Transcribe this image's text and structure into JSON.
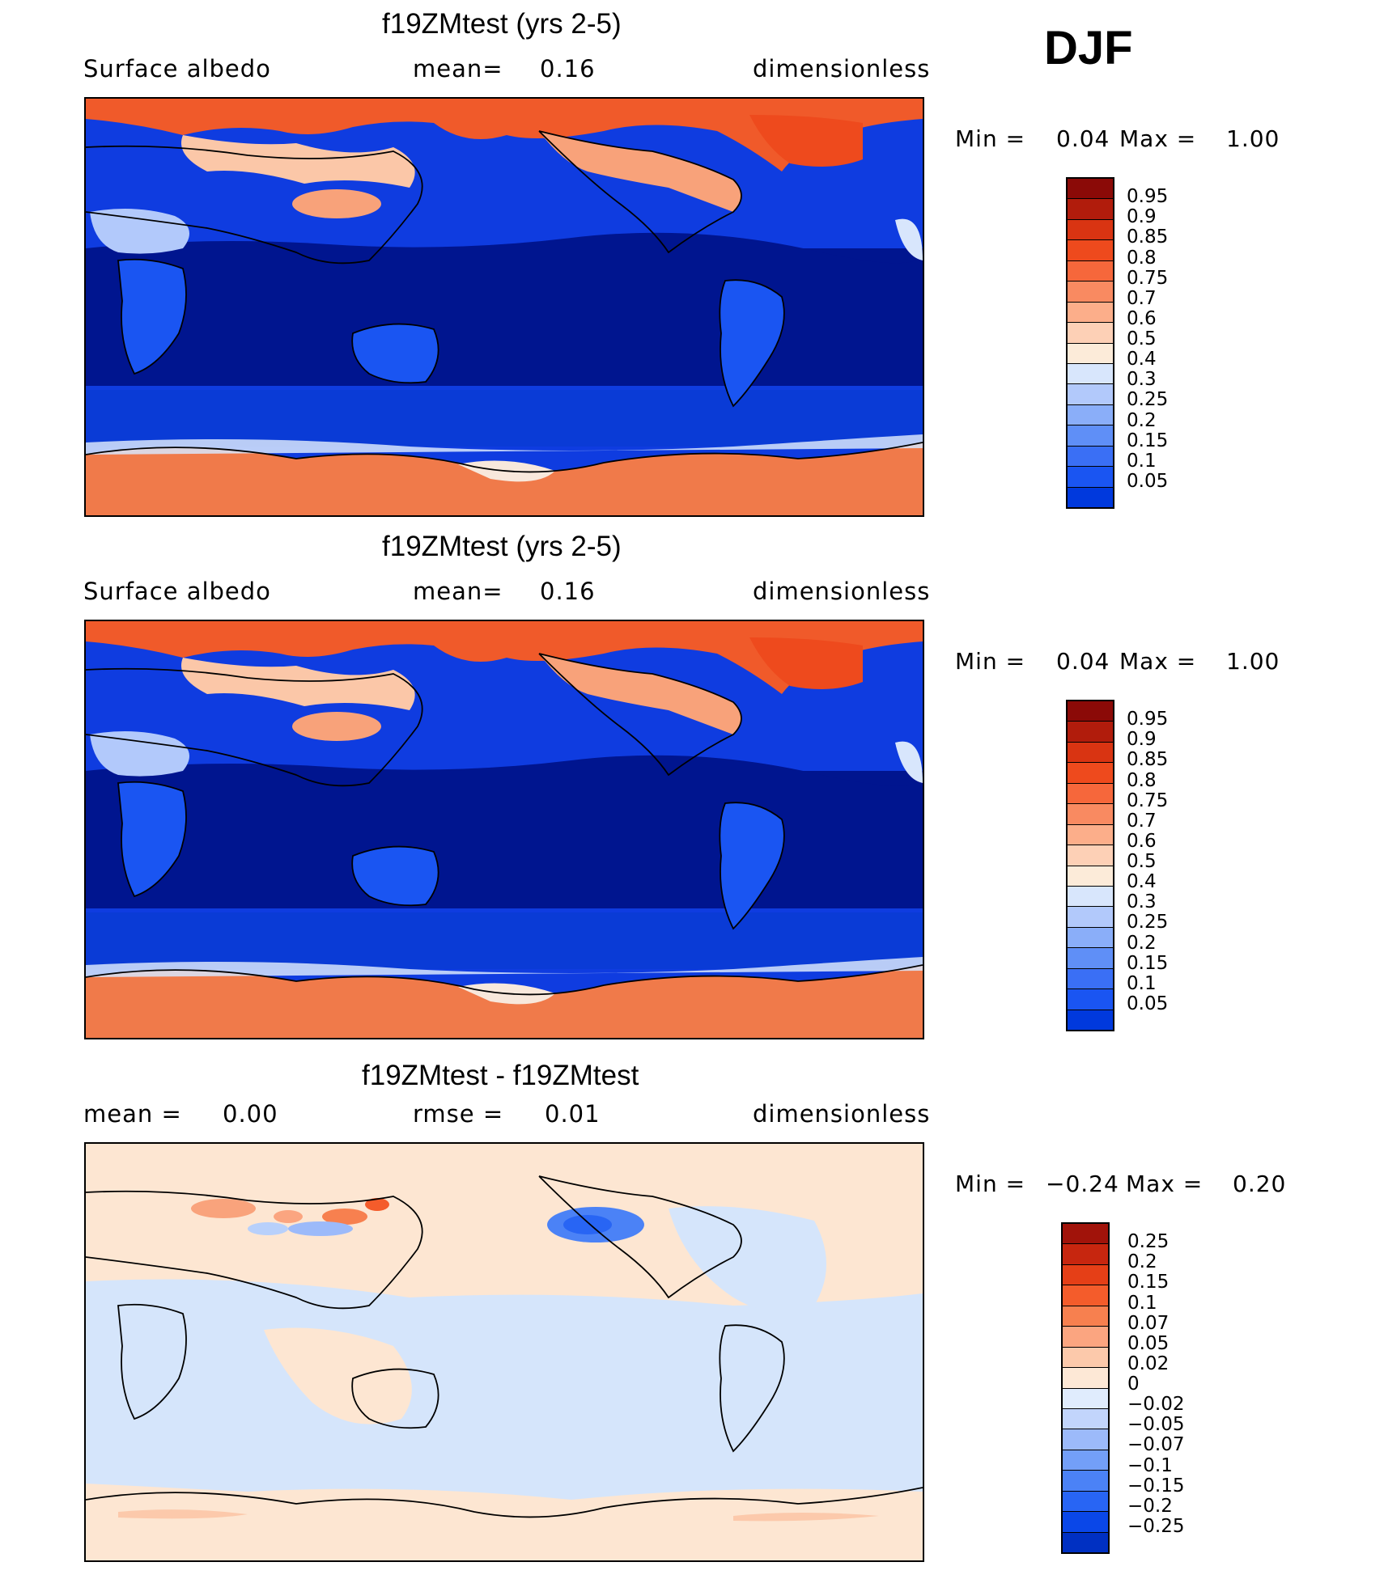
{
  "season": "DJF",
  "colors": {
    "full_palette": [
      "#000f7a",
      "#0026b4",
      "#0039dd",
      "#1a55f2",
      "#3a6ff5",
      "#5f8ff7",
      "#8aaef9",
      "#b2c9fb",
      "#d8e6fc",
      "#fcebd9",
      "#fdd0b6",
      "#fcae8a",
      "#f98a61",
      "#f6673b",
      "#ee4a1d",
      "#d93412",
      "#b11c0c",
      "#8b0a07"
    ],
    "diff_palette": [
      "#001a8a",
      "#0030c2",
      "#0a47e8",
      "#2865f4",
      "#4b82f6",
      "#739ff8",
      "#9cbafa",
      "#c2d5fc",
      "#e0ecfd",
      "#fde8d6",
      "#fcc9ab",
      "#fba580",
      "#f7804f",
      "#f45c2b",
      "#e53f17",
      "#c7260f",
      "#a1130a"
    ],
    "ocean": "#00158f",
    "ocean_band": "#0a3bd6",
    "sea_ice": "#f07a4a",
    "diff_bg": "#fde6d2",
    "diff_blue": "#d5e5fb"
  },
  "panels": [
    {
      "title": "f19ZMtest (yrs 2-5)",
      "left_label": "Surface albedo",
      "mid_label": "mean=",
      "mid_value": "0.16",
      "units": "dimensionless",
      "min_label": "Min =",
      "min_value": "0.04",
      "max_label": "Max =",
      "max_value": "1.00",
      "levels": [
        "0.95",
        "0.9",
        "0.85",
        "0.8",
        "0.75",
        "0.7",
        "0.6",
        "0.5",
        "0.4",
        "0.3",
        "0.25",
        "0.2",
        "0.15",
        "0.1",
        "0.05"
      ]
    },
    {
      "title": "f19ZMtest (yrs 2-5)",
      "left_label": "Surface albedo",
      "mid_label": "mean=",
      "mid_value": "0.16",
      "units": "dimensionless",
      "min_label": "Min =",
      "min_value": "0.04",
      "max_label": "Max =",
      "max_value": "1.00",
      "levels": [
        "0.95",
        "0.9",
        "0.85",
        "0.8",
        "0.75",
        "0.7",
        "0.6",
        "0.5",
        "0.4",
        "0.3",
        "0.25",
        "0.2",
        "0.15",
        "0.1",
        "0.05"
      ]
    },
    {
      "title": "f19ZMtest - f19ZMtest",
      "left_label": "mean =",
      "left_value": "0.00",
      "mid_label": "rmse =",
      "mid_value": "0.01",
      "units": "dimensionless",
      "min_label": "Min =",
      "min_value": "−0.24",
      "max_label": "Max =",
      "max_value": "0.20",
      "levels": [
        "0.25",
        "0.2",
        "0.15",
        "0.1",
        "0.07",
        "0.05",
        "0.02",
        "0",
        "−0.02",
        "−0.05",
        "−0.07",
        "−0.1",
        "−0.15",
        "−0.2",
        "−0.25"
      ]
    }
  ]
}
